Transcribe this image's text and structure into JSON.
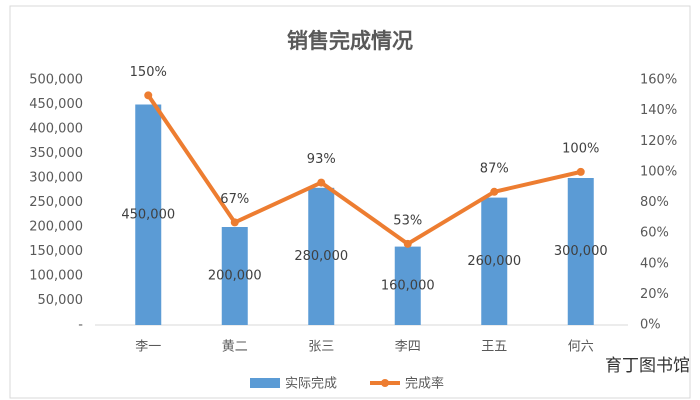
{
  "chart_data": {
    "type": "bar-line",
    "title": "销售完成情况",
    "categories": [
      "李一",
      "黄二",
      "张三",
      "李四",
      "王五",
      "何六"
    ],
    "series": [
      {
        "name": "实际完成",
        "type": "bar",
        "color": "#5b9bd5",
        "values": [
          450000,
          200000,
          280000,
          160000,
          260000,
          300000
        ],
        "value_labels": [
          "450,000",
          "200,000",
          "280,000",
          "160,000",
          "260,000",
          "300,000"
        ]
      },
      {
        "name": "完成率",
        "type": "line",
        "axis": "y2",
        "color": "#ed7d31",
        "values": [
          150,
          67,
          93,
          53,
          87,
          100
        ],
        "value_labels": [
          "150%",
          "67%",
          "93%",
          "53%",
          "87%",
          "100%"
        ]
      }
    ],
    "ylim": [
      0,
      500000
    ],
    "yticks": [
      {
        "value": 0,
        "label": "-"
      },
      {
        "value": 50000,
        "label": "50,000"
      },
      {
        "value": 100000,
        "label": "100,000"
      },
      {
        "value": 150000,
        "label": "150,000"
      },
      {
        "value": 200000,
        "label": "200,000"
      },
      {
        "value": 250000,
        "label": "250,000"
      },
      {
        "value": 300000,
        "label": "300,000"
      },
      {
        "value": 350000,
        "label": "350,000"
      },
      {
        "value": 400000,
        "label": "400,000"
      },
      {
        "value": 450000,
        "label": "450,000"
      },
      {
        "value": 500000,
        "label": "500,000"
      }
    ],
    "y2lim": [
      0,
      160
    ],
    "y2ticks": [
      {
        "value": 0,
        "label": "0%"
      },
      {
        "value": 20,
        "label": "20%"
      },
      {
        "value": 40,
        "label": "40%"
      },
      {
        "value": 60,
        "label": "60%"
      },
      {
        "value": 80,
        "label": "80%"
      },
      {
        "value": 100,
        "label": "100%"
      },
      {
        "value": 120,
        "label": "120%"
      },
      {
        "value": 140,
        "label": "140%"
      },
      {
        "value": 160,
        "label": "160%"
      }
    ],
    "grid": false,
    "legend": "bottom"
  },
  "watermark": "育丁图书馆"
}
